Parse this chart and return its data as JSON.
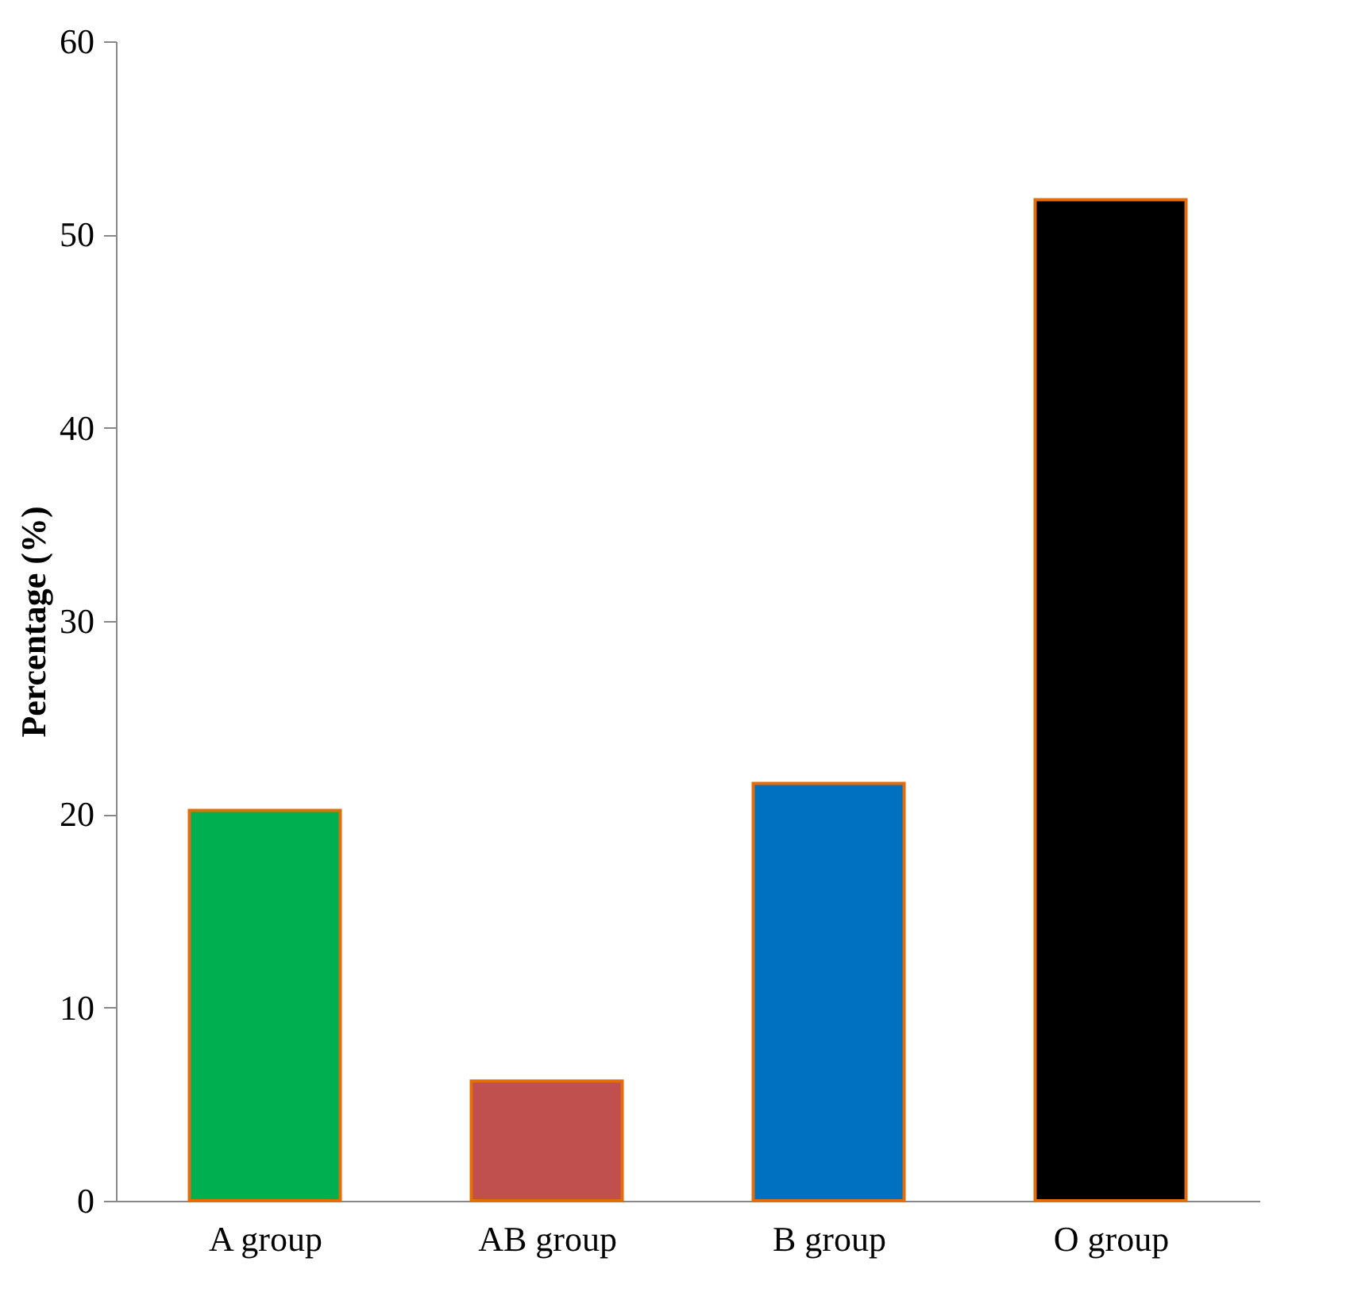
{
  "chart_data": {
    "type": "bar",
    "ylabel": "Percentage (%)",
    "categories": [
      "A group",
      "AB group",
      "B group",
      "O group"
    ],
    "values": [
      20.2,
      6.2,
      21.6,
      51.8
    ],
    "colors": [
      "#00b050",
      "#c0504d",
      "#0070c0",
      "#000000"
    ],
    "ylim": [
      0,
      60
    ],
    "yticks": [
      0,
      10,
      20,
      30,
      40,
      50,
      60
    ],
    "grid": false,
    "legend": false
  }
}
